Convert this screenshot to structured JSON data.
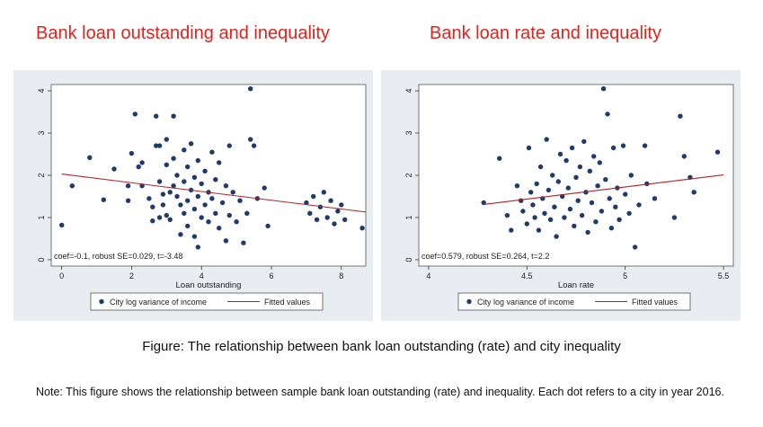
{
  "headings": {
    "left": "Bank loan outstanding and inequality",
    "right": "Bank loan rate and inequality"
  },
  "caption": "Figure: The relationship between bank loan outstanding (rate) and city inequality",
  "note": "Note: This figure shows the relationship between sample bank loan outstanding (rate) and inequality. Each dot refers to a city in year 2016.",
  "colors": {
    "heading": "#e8201a",
    "dots": "#1f3a6b",
    "fit": "#b22222",
    "panel": "#e9ecf0"
  },
  "chart_data": [
    {
      "type": "scatter",
      "title": "",
      "xlabel": "Loan outstanding",
      "ylabel": "",
      "xlim": [
        -0.3,
        8.7
      ],
      "ylim": [
        -0.15,
        4.15
      ],
      "xticks": [
        0,
        2,
        4,
        6,
        8
      ],
      "yticks": [
        0,
        1,
        2,
        3,
        4
      ],
      "grid": false,
      "legend_position": "bottom",
      "annotation": "coef=-0.1, robust SE=0.029, t=-3.48",
      "fit_line": {
        "x": [
          0,
          8.7
        ],
        "y": [
          2.03,
          1.13
        ]
      },
      "series": [
        {
          "name": "City log variance of income",
          "kind": "scatter",
          "points": [
            [
              0.0,
              0.82
            ],
            [
              0.3,
              1.75
            ],
            [
              0.8,
              2.42
            ],
            [
              1.2,
              1.42
            ],
            [
              1.5,
              2.15
            ],
            [
              1.9,
              1.4
            ],
            [
              1.9,
              1.75
            ],
            [
              2.0,
              2.52
            ],
            [
              2.1,
              3.45
            ],
            [
              2.2,
              2.2
            ],
            [
              2.3,
              2.3
            ],
            [
              2.3,
              1.75
            ],
            [
              2.5,
              1.45
            ],
            [
              2.6,
              1.25
            ],
            [
              2.6,
              0.92
            ],
            [
              2.7,
              3.4
            ],
            [
              2.7,
              2.7
            ],
            [
              2.8,
              2.7
            ],
            [
              2.8,
              1.85
            ],
            [
              2.8,
              1.0
            ],
            [
              2.9,
              1.55
            ],
            [
              2.9,
              1.3
            ],
            [
              3.0,
              2.85
            ],
            [
              3.0,
              2.25
            ],
            [
              3.0,
              1.05
            ],
            [
              3.1,
              1.6
            ],
            [
              3.1,
              0.95
            ],
            [
              3.2,
              3.4
            ],
            [
              3.2,
              2.4
            ],
            [
              3.2,
              1.75
            ],
            [
              3.3,
              2.0
            ],
            [
              3.3,
              1.5
            ],
            [
              3.4,
              1.3
            ],
            [
              3.4,
              0.6
            ],
            [
              3.5,
              2.6
            ],
            [
              3.5,
              1.85
            ],
            [
              3.5,
              1.1
            ],
            [
              3.6,
              2.2
            ],
            [
              3.6,
              1.4
            ],
            [
              3.6,
              0.8
            ],
            [
              3.7,
              2.75
            ],
            [
              3.7,
              1.65
            ],
            [
              3.8,
              1.95
            ],
            [
              3.8,
              1.2
            ],
            [
              3.8,
              0.55
            ],
            [
              3.9,
              2.35
            ],
            [
              3.9,
              1.5
            ],
            [
              3.9,
              0.3
            ],
            [
              4.0,
              1.8
            ],
            [
              4.0,
              1.0
            ],
            [
              4.1,
              2.1
            ],
            [
              4.1,
              1.3
            ],
            [
              4.2,
              1.6
            ],
            [
              4.2,
              0.9
            ],
            [
              4.3,
              2.55
            ],
            [
              4.3,
              1.45
            ],
            [
              4.4,
              1.9
            ],
            [
              4.4,
              1.1
            ],
            [
              4.5,
              2.3
            ],
            [
              4.5,
              0.75
            ],
            [
              4.6,
              1.35
            ],
            [
              4.7,
              1.75
            ],
            [
              4.7,
              0.45
            ],
            [
              4.8,
              2.7
            ],
            [
              4.8,
              1.05
            ],
            [
              4.9,
              1.6
            ],
            [
              5.0,
              0.9
            ],
            [
              5.1,
              1.4
            ],
            [
              5.2,
              0.4
            ],
            [
              5.3,
              1.1
            ],
            [
              5.4,
              4.05
            ],
            [
              5.4,
              2.85
            ],
            [
              5.5,
              2.7
            ],
            [
              5.6,
              1.45
            ],
            [
              5.8,
              1.7
            ],
            [
              5.9,
              0.8
            ],
            [
              7.0,
              1.35
            ],
            [
              7.1,
              1.1
            ],
            [
              7.2,
              1.5
            ],
            [
              7.3,
              0.95
            ],
            [
              7.4,
              1.25
            ],
            [
              7.5,
              1.6
            ],
            [
              7.6,
              1.0
            ],
            [
              7.7,
              1.4
            ],
            [
              7.8,
              0.85
            ],
            [
              7.9,
              1.15
            ],
            [
              8.0,
              1.3
            ],
            [
              8.1,
              0.95
            ],
            [
              8.6,
              0.75
            ]
          ]
        },
        {
          "name": "Fitted values",
          "kind": "line"
        }
      ]
    },
    {
      "type": "scatter",
      "title": "",
      "xlabel": "Loan rate",
      "ylabel": "",
      "xlim": [
        3.95,
        5.55
      ],
      "ylim": [
        -0.15,
        4.15
      ],
      "xticks": [
        4,
        4.5,
        5,
        5.5
      ],
      "yticks": [
        0,
        1,
        2,
        3,
        4
      ],
      "grid": false,
      "legend_position": "bottom",
      "annotation": "coef=0.579, robust SE=0.264, t=2.2",
      "fit_line": {
        "x": [
          4.28,
          5.5
        ],
        "y": [
          1.31,
          2.01
        ]
      },
      "series": [
        {
          "name": "City log variance of income",
          "kind": "scatter",
          "points": [
            [
              4.28,
              1.35
            ],
            [
              4.36,
              2.4
            ],
            [
              4.4,
              1.05
            ],
            [
              4.42,
              0.7
            ],
            [
              4.45,
              1.75
            ],
            [
              4.47,
              1.4
            ],
            [
              4.48,
              1.15
            ],
            [
              4.5,
              0.85
            ],
            [
              4.51,
              2.65
            ],
            [
              4.52,
              1.6
            ],
            [
              4.53,
              1.3
            ],
            [
              4.54,
              1.0
            ],
            [
              4.55,
              1.8
            ],
            [
              4.56,
              0.7
            ],
            [
              4.57,
              2.2
            ],
            [
              4.58,
              1.45
            ],
            [
              4.59,
              1.1
            ],
            [
              4.6,
              2.85
            ],
            [
              4.61,
              1.65
            ],
            [
              4.62,
              0.95
            ],
            [
              4.63,
              2.0
            ],
            [
              4.64,
              1.25
            ],
            [
              4.65,
              0.55
            ],
            [
              4.66,
              1.85
            ],
            [
              4.67,
              2.5
            ],
            [
              4.68,
              1.5
            ],
            [
              4.69,
              1.0
            ],
            [
              4.7,
              2.35
            ],
            [
              4.71,
              1.7
            ],
            [
              4.72,
              1.2
            ],
            [
              4.73,
              2.65
            ],
            [
              4.74,
              0.8
            ],
            [
              4.75,
              1.95
            ],
            [
              4.76,
              1.4
            ],
            [
              4.77,
              2.2
            ],
            [
              4.78,
              1.05
            ],
            [
              4.79,
              2.8
            ],
            [
              4.8,
              1.6
            ],
            [
              4.81,
              0.65
            ],
            [
              4.82,
              2.1
            ],
            [
              4.83,
              1.35
            ],
            [
              4.84,
              2.45
            ],
            [
              4.85,
              0.9
            ],
            [
              4.86,
              1.75
            ],
            [
              4.87,
              2.3
            ],
            [
              4.88,
              1.15
            ],
            [
              4.89,
              4.05
            ],
            [
              4.9,
              1.9
            ],
            [
              4.91,
              3.45
            ],
            [
              4.92,
              1.45
            ],
            [
              4.93,
              0.75
            ],
            [
              4.94,
              2.65
            ],
            [
              4.95,
              1.25
            ],
            [
              4.96,
              1.7
            ],
            [
              4.97,
              0.95
            ],
            [
              4.99,
              2.7
            ],
            [
              5.0,
              1.55
            ],
            [
              5.02,
              1.1
            ],
            [
              5.03,
              2.0
            ],
            [
              5.05,
              0.3
            ],
            [
              5.07,
              1.3
            ],
            [
              5.1,
              2.7
            ],
            [
              5.11,
              1.8
            ],
            [
              5.15,
              1.45
            ],
            [
              5.25,
              1.0
            ],
            [
              5.28,
              3.4
            ],
            [
              5.3,
              2.45
            ],
            [
              5.33,
              1.95
            ],
            [
              5.35,
              1.6
            ],
            [
              5.47,
              2.55
            ]
          ]
        },
        {
          "name": "Fitted values",
          "kind": "line"
        }
      ]
    }
  ]
}
